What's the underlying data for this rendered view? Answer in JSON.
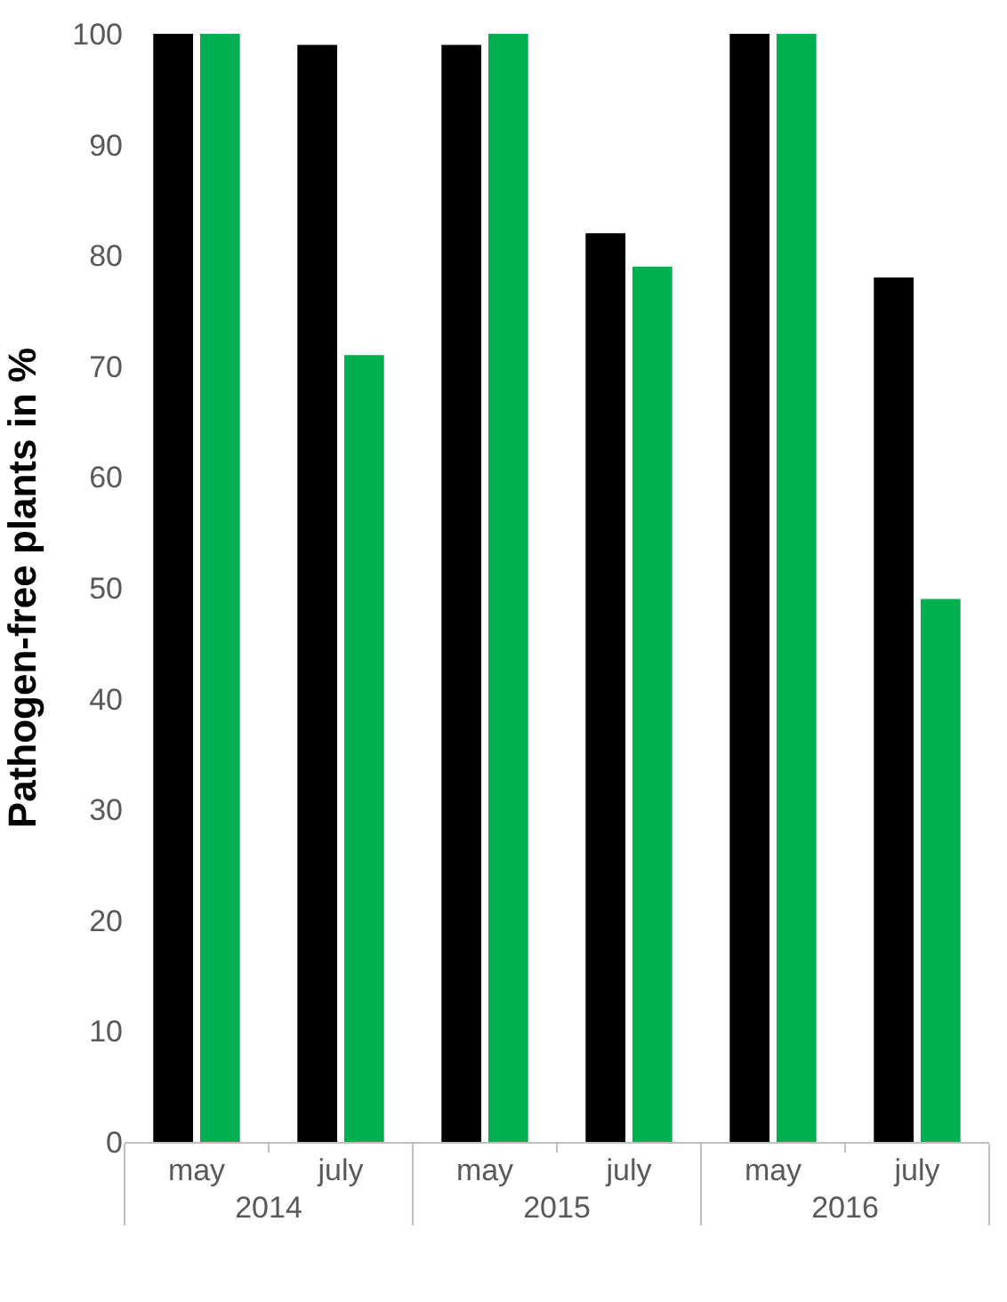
{
  "chart_data": {
    "type": "bar",
    "ylabel": "Pathogen-free plants in %",
    "categories": [
      "may",
      "july",
      "may",
      "july",
      "may",
      "july"
    ],
    "annotations": [
      "2014",
      "2015",
      "2016"
    ],
    "series": [
      {
        "color": "#000000",
        "values": [
          100,
          99,
          99,
          82,
          100,
          78
        ]
      },
      {
        "color": "#00b050",
        "values": [
          100,
          71,
          100,
          79,
          100,
          49
        ]
      }
    ],
    "ylim": [
      0,
      100
    ],
    "yticks": [
      0,
      10,
      20,
      30,
      40,
      50,
      60,
      70,
      80,
      90,
      100
    ],
    "grid": false
  }
}
